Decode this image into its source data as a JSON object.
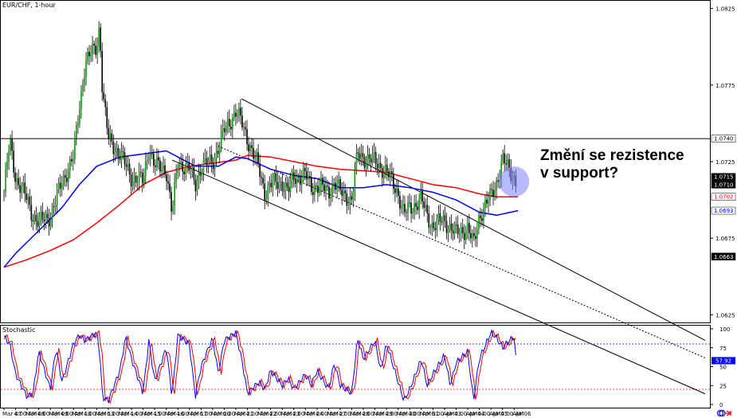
{
  "chart_data": {
    "type": "candlestick",
    "symbol_label": "EUR/CHF, 1-hour",
    "annotation": [
      "Změní se rezistence",
      "v support?"
    ],
    "ylim": [
      1.062,
      1.083
    ],
    "price_ticks": [
      1.0825,
      1.0775,
      1.0725,
      1.0675,
      1.0625
    ],
    "price_levels": {
      "horizontal_line": {
        "value": 1.074,
        "label": "1.0740"
      },
      "last_price": [
        {
          "value": 1.0715,
          "label": "1.0715",
          "bg": "#000000",
          "fg": "#ffffff"
        },
        {
          "value": 1.071,
          "label": "1.0710",
          "bg": "#000000",
          "fg": "#ffffff"
        },
        {
          "value": 1.0702,
          "label": "1.0702",
          "bg": "#ffffff",
          "fg": "#ff0000"
        },
        {
          "value": 1.0693,
          "label": "1.0693",
          "bg": "#ffffff",
          "fg": "#0000ff"
        },
        {
          "value": 1.0663,
          "label": "1.0663",
          "bg": "#000000",
          "fg": "#ffffff"
        }
      ]
    },
    "ma_colors": {
      "fast": "#0000ff",
      "slow": "#ff0000"
    },
    "channel_lines": [
      {
        "x": [
          "Mar 21 6:00",
          "Apr 06 4:00"
        ],
        "y": [
          1.0766,
          1.0672
        ],
        "style": "solid"
      },
      {
        "x": [
          "Mar 20 6:00",
          "Apr 06 4:00"
        ],
        "y": [
          1.0735,
          1.065
        ],
        "style": "dotted"
      },
      {
        "x": [
          "Mar 16 6:00",
          "Apr 06 4:00"
        ],
        "y": [
          1.0726,
          1.0627
        ],
        "style": "solid"
      }
    ],
    "highlight_circle": {
      "x": "Apr 06 0:00",
      "y": 1.0712,
      "color": "#8080ff"
    },
    "time_labels": [
      "Mar 07",
      "4:00 AM",
      "Mar 08",
      "4:00 AM",
      "Mar 09",
      "4:00 AM",
      "Mar 10",
      "4:00 AM",
      "Mar 13",
      "6:00 AM",
      "Mar 14",
      "4:00 AM",
      "Mar 15",
      "4:00 AM",
      "Mar 16",
      "4:00 AM",
      "Mar 17",
      "6:00 AM",
      "Mar 20",
      "6:00 AM",
      "Mar 21",
      "4:00 AM",
      "Mar 22",
      "4:00 AM",
      "Mar 23",
      "4:00 AM",
      "Mar 24",
      "4:00 AM",
      "Mar 27",
      "4:00 AM",
      "Mar 28",
      "4:00 AM",
      "Mar 29",
      "4:00 AM",
      "Mar 30",
      "4:00 AM",
      "Mar 31",
      "6:00 AM",
      "Apr 03",
      "4:00 AM",
      "Apr 04",
      "4:00 AM",
      "Apr 05",
      "4:00 AM",
      "Apr 06"
    ],
    "price_path": [
      [
        "Mar 07 0:00",
        1.0705
      ],
      [
        "Mar 07 6:00",
        1.0738
      ],
      [
        "Mar 07 12:00",
        1.0715
      ],
      [
        "Mar 08 0:00",
        1.07
      ],
      [
        "Mar 08 6:00",
        1.069
      ],
      [
        "Mar 08 12:00",
        1.0685
      ],
      [
        "Mar 09 0:00",
        1.069
      ],
      [
        "Mar 09 6:00",
        1.07
      ],
      [
        "Mar 09 12:00",
        1.0712
      ],
      [
        "Mar 10 0:00",
        1.0728
      ],
      [
        "Mar 10 6:00",
        1.076
      ],
      [
        "Mar 10 12:00",
        1.079
      ],
      [
        "Mar 13 0:00",
        1.08
      ],
      [
        "Mar 13 3:00",
        1.0815
      ],
      [
        "Mar 13 6:00",
        1.077
      ],
      [
        "Mar 13 12:00",
        1.074
      ],
      [
        "Mar 14 0:00",
        1.073
      ],
      [
        "Mar 14 6:00",
        1.0722
      ],
      [
        "Mar 14 12:00",
        1.0715
      ],
      [
        "Mar 15 0:00",
        1.0712
      ],
      [
        "Mar 15 6:00",
        1.0735
      ],
      [
        "Mar 15 12:00",
        1.0722
      ],
      [
        "Mar 16 0:00",
        1.072
      ],
      [
        "Mar 16 6:00",
        1.069
      ],
      [
        "Mar 16 12:00",
        1.0725
      ],
      [
        "Mar 17 0:00",
        1.072
      ],
      [
        "Mar 17 6:00",
        1.071
      ],
      [
        "Mar 17 12:00",
        1.0722
      ],
      [
        "Mar 20 0:00",
        1.0725
      ],
      [
        "Mar 20 6:00",
        1.0735
      ],
      [
        "Mar 20 12:00",
        1.0745
      ],
      [
        "Mar 21 0:00",
        1.0758
      ],
      [
        "Mar 21 6:00",
        1.075
      ],
      [
        "Mar 21 12:00",
        1.074
      ],
      [
        "Mar 22 0:00",
        1.072
      ],
      [
        "Mar 22 6:00",
        1.0705
      ],
      [
        "Mar 22 12:00",
        1.071
      ],
      [
        "Mar 23 0:00",
        1.0712
      ],
      [
        "Mar 23 6:00",
        1.0705
      ],
      [
        "Mar 23 12:00",
        1.0715
      ],
      [
        "Mar 24 0:00",
        1.0716
      ],
      [
        "Mar 24 6:00",
        1.0708
      ],
      [
        "Mar 24 12:00",
        1.071
      ],
      [
        "Mar 27 0:00",
        1.0705
      ],
      [
        "Mar 27 6:00",
        1.0712
      ],
      [
        "Mar 27 12:00",
        1.0705
      ],
      [
        "Mar 28 0:00",
        1.07
      ],
      [
        "Mar 28 6:00",
        1.073
      ],
      [
        "Mar 28 12:00",
        1.0728
      ],
      [
        "Mar 29 0:00",
        1.0725
      ],
      [
        "Mar 29 6:00",
        1.0722
      ],
      [
        "Mar 29 12:00",
        1.0718
      ],
      [
        "Mar 30 0:00",
        1.0705
      ],
      [
        "Mar 30 6:00",
        1.069
      ],
      [
        "Mar 30 12:00",
        1.0695
      ],
      [
        "Mar 31 0:00",
        1.07
      ],
      [
        "Mar 31 6:00",
        1.069
      ],
      [
        "Mar 31 12:00",
        1.0683
      ],
      [
        "Apr 03 0:00",
        1.0687
      ],
      [
        "Apr 03 6:00",
        1.0682
      ],
      [
        "Apr 03 12:00",
        1.0678
      ],
      [
        "Apr 04 0:00",
        1.0682
      ],
      [
        "Apr 04 6:00",
        1.067
      ],
      [
        "Apr 04 12:00",
        1.069
      ],
      [
        "Apr 05 0:00",
        1.0702
      ],
      [
        "Apr 05 6:00",
        1.0712
      ],
      [
        "Apr 05 12:00",
        1.0726
      ],
      [
        "Apr 06 0:00",
        1.0715
      ],
      [
        "Apr 06 2:00",
        1.0712
      ]
    ],
    "ma_fast": [
      [
        "Mar 07 0:00",
        1.0656
      ],
      [
        "Mar 07 12:00",
        1.0665
      ],
      [
        "Mar 08 12:00",
        1.068
      ],
      [
        "Mar 09 12:00",
        1.0695
      ],
      [
        "Mar 10 6:00",
        1.071
      ],
      [
        "Mar 13 0:00",
        1.0722
      ],
      [
        "Mar 14 0:00",
        1.0728
      ],
      [
        "Mar 15 0:00",
        1.073
      ],
      [
        "Mar 16 0:00",
        1.0732
      ],
      [
        "Mar 16 12:00",
        1.0728
      ],
      [
        "Mar 17 6:00",
        1.0722
      ],
      [
        "Mar 20 6:00",
        1.0722
      ],
      [
        "Mar 21 0:00",
        1.0728
      ],
      [
        "Mar 21 12:00",
        1.0727
      ],
      [
        "Mar 22 12:00",
        1.072
      ],
      [
        "Mar 23 12:00",
        1.0716
      ],
      [
        "Mar 24 12:00",
        1.0714
      ],
      [
        "Mar 27 12:00",
        1.0708
      ],
      [
        "Mar 28 12:00",
        1.0708
      ],
      [
        "Mar 29 12:00",
        1.071
      ],
      [
        "Mar 30 12:00",
        1.0708
      ],
      [
        "Mar 31 12:00",
        1.0705
      ],
      [
        "Apr 03 12:00",
        1.07
      ],
      [
        "Apr 04 12:00",
        1.0692
      ],
      [
        "Apr 05 6:00",
        1.069
      ],
      [
        "Apr 06 4:00",
        1.0693
      ]
    ],
    "ma_slow": [
      [
        "Mar 07 0:00",
        1.0656
      ],
      [
        "Mar 08 0:00",
        1.0661
      ],
      [
        "Mar 09 0:00",
        1.0667
      ],
      [
        "Mar 10 0:00",
        1.0674
      ],
      [
        "Mar 13 0:00",
        1.0685
      ],
      [
        "Mar 14 0:00",
        1.0697
      ],
      [
        "Mar 15 0:00",
        1.071
      ],
      [
        "Mar 16 0:00",
        1.0718
      ],
      [
        "Mar 17 0:00",
        1.0722
      ],
      [
        "Mar 20 0:00",
        1.0724
      ],
      [
        "Mar 21 0:00",
        1.0726
      ],
      [
        "Mar 21 12:00",
        1.0729
      ],
      [
        "Mar 22 12:00",
        1.0728
      ],
      [
        "Mar 23 12:00",
        1.0725
      ],
      [
        "Mar 24 12:00",
        1.0722
      ],
      [
        "Mar 27 12:00",
        1.072
      ],
      [
        "Mar 28 12:00",
        1.0719
      ],
      [
        "Mar 29 12:00",
        1.0718
      ],
      [
        "Mar 30 12:00",
        1.0714
      ],
      [
        "Mar 31 12:00",
        1.071
      ],
      [
        "Apr 03 12:00",
        1.0708
      ],
      [
        "Apr 04 12:00",
        1.0704
      ],
      [
        "Apr 05 6:00",
        1.0702
      ],
      [
        "Apr 06 4:00",
        1.0702
      ]
    ],
    "stochastic": {
      "label": "Stochastic",
      "ylim": [
        0,
        100
      ],
      "ticks": [
        100,
        75,
        50,
        25,
        0
      ],
      "levels": [
        {
          "value": 80,
          "color": "#0000ff"
        },
        {
          "value": 20,
          "color": "#ff0000"
        }
      ],
      "current": {
        "value": 57.92,
        "label": "57.92"
      },
      "k_color": "#0000ff",
      "d_color": "#ff0000",
      "values": [
        [
          "Mar 07 0:00",
          90
        ],
        [
          "Mar 07 6:00",
          80
        ],
        [
          "Mar 07 12:00",
          40
        ],
        [
          "Mar 08 0:00",
          10
        ],
        [
          "Mar 08 6:00",
          15
        ],
        [
          "Mar 08 12:00",
          70
        ],
        [
          "Mar 09 0:00",
          20
        ],
        [
          "Mar 09 6:00",
          75
        ],
        [
          "Mar 09 12:00",
          30
        ],
        [
          "Mar 10 0:00",
          80
        ],
        [
          "Mar 10 6:00",
          92
        ],
        [
          "Mar 10 12:00",
          85
        ],
        [
          "Mar 13 0:00",
          95
        ],
        [
          "Mar 13 3:00",
          70
        ],
        [
          "Mar 13 6:00",
          10
        ],
        [
          "Mar 13 12:00",
          5
        ],
        [
          "Mar 14 0:00",
          45
        ],
        [
          "Mar 14 6:00",
          90
        ],
        [
          "Mar 14 12:00",
          60
        ],
        [
          "Mar 15 0:00",
          15
        ],
        [
          "Mar 15 6:00",
          85
        ],
        [
          "Mar 15 12:00",
          30
        ],
        [
          "Mar 16 0:00",
          75
        ],
        [
          "Mar 16 6:00",
          10
        ],
        [
          "Mar 16 12:00",
          92
        ],
        [
          "Mar 17 0:00",
          80
        ],
        [
          "Mar 17 6:00",
          10
        ],
        [
          "Mar 17 12:00",
          50
        ],
        [
          "Mar 20 0:00",
          88
        ],
        [
          "Mar 20 6:00",
          40
        ],
        [
          "Mar 20 12:00",
          85
        ],
        [
          "Mar 21 0:00",
          95
        ],
        [
          "Mar 21 6:00",
          60
        ],
        [
          "Mar 21 12:00",
          15
        ],
        [
          "Mar 22 0:00",
          30
        ],
        [
          "Mar 22 6:00",
          20
        ],
        [
          "Mar 22 12:00",
          45
        ],
        [
          "Mar 23 0:00",
          25
        ],
        [
          "Mar 23 6:00",
          35
        ],
        [
          "Mar 23 12:00",
          20
        ],
        [
          "Mar 24 0:00",
          40
        ],
        [
          "Mar 24 6:00",
          25
        ],
        [
          "Mar 24 12:00",
          45
        ],
        [
          "Mar 27 0:00",
          20
        ],
        [
          "Mar 27 6:00",
          55
        ],
        [
          "Mar 27 12:00",
          25
        ],
        [
          "Mar 28 0:00",
          15
        ],
        [
          "Mar 28 6:00",
          88
        ],
        [
          "Mar 28 12:00",
          60
        ],
        [
          "Mar 29 0:00",
          85
        ],
        [
          "Mar 29 6:00",
          45
        ],
        [
          "Mar 29 12:00",
          80
        ],
        [
          "Mar 30 0:00",
          30
        ],
        [
          "Mar 30 6:00",
          5
        ],
        [
          "Mar 30 12:00",
          20
        ],
        [
          "Mar 31 0:00",
          60
        ],
        [
          "Mar 31 6:00",
          25
        ],
        [
          "Mar 31 12:00",
          40
        ],
        [
          "Apr 03 0:00",
          65
        ],
        [
          "Apr 03 6:00",
          25
        ],
        [
          "Apr 03 12:00",
          55
        ],
        [
          "Apr 04 0:00",
          70
        ],
        [
          "Apr 04 6:00",
          5
        ],
        [
          "Apr 04 12:00",
          60
        ],
        [
          "Apr 05 0:00",
          95
        ],
        [
          "Apr 05 6:00",
          88
        ],
        [
          "Apr 05 12:00",
          75
        ],
        [
          "Apr 06 0:00",
          90
        ],
        [
          "Apr 06 2:00",
          58
        ]
      ]
    }
  }
}
